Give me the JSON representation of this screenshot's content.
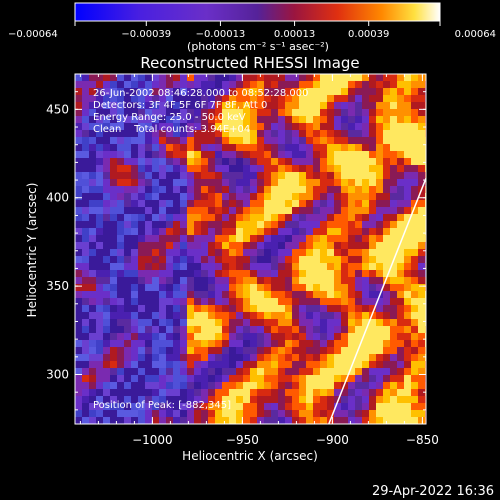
{
  "chart_data": {
    "type": "heatmap",
    "title": "Reconstructed RHESSI Image",
    "xlabel": "Heliocentric X (arcsec)",
    "ylabel": "Heliocentric Y (arcsec)",
    "xlim": [
      -1043,
      -848
    ],
    "ylim": [
      272,
      470
    ],
    "xticks": [
      -1000,
      -950,
      -900,
      -850
    ],
    "xtick_labels": [
      "−1000",
      "−950",
      "−900",
      "−850"
    ],
    "yticks": [
      300,
      350,
      400,
      450
    ],
    "ytick_labels": [
      "300",
      "350",
      "400",
      "450"
    ],
    "colorbar": {
      "range": [
        -0.00064,
        0.00064
      ],
      "ticks": [
        -0.00064,
        -0.00039,
        -0.00013,
        0.00013,
        0.00039,
        0.00064
      ],
      "tick_labels": [
        "−0.00064",
        "−0.00039",
        "−0.00013",
        "0.00013",
        "0.00039",
        "0.00064"
      ],
      "units_label": "(photons cm⁻² s⁻¹ asec⁻²)",
      "colors": [
        "#0000ff",
        "#6a2fc8",
        "#5a2aa0",
        "#8a1a55",
        "#d01a1a",
        "#ff7000",
        "#ffd000",
        "#ffffff"
      ]
    },
    "annotations": [
      "26-Jun-2002 08:46:28.000 to 08:52:28.000",
      "Detectors: 3F 4F 5F 6F 7F 8F, Att 0",
      "Energy Range: 25.0 - 50.0 keV",
      "Clean    Total counts: 3.94E+04"
    ],
    "peak_label": "Position of Peak: [-882,345]",
    "peak": [
      -882,
      345
    ],
    "limb_line": {
      "x": [
        -902,
        -848
      ],
      "y": [
        272,
        411
      ]
    }
  },
  "footer": {
    "timestamp": "29-Apr-2022 16:36"
  }
}
